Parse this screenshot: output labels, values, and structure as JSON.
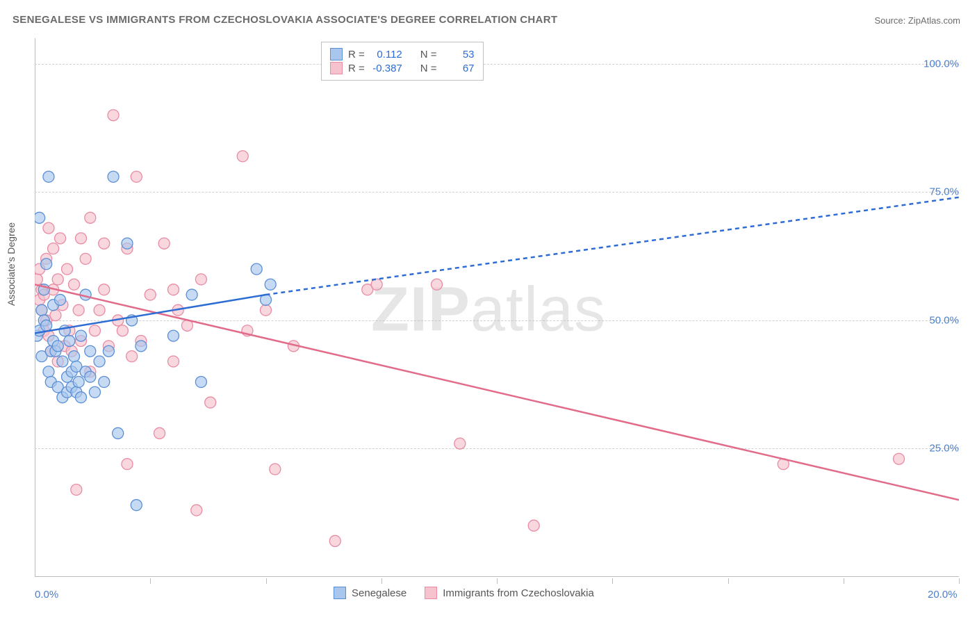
{
  "title": "SENEGALESE VS IMMIGRANTS FROM CZECHOSLOVAKIA ASSOCIATE'S DEGREE CORRELATION CHART",
  "source": "Source: ZipAtlas.com",
  "watermark_bold": "ZIP",
  "watermark_rest": "atlas",
  "ylabel": "Associate's Degree",
  "colors": {
    "blue_fill": "#a9c6ec",
    "blue_stroke": "#5a8fd6",
    "blue_line": "#2d6cd4",
    "pink_fill": "#f5c2ce",
    "pink_stroke": "#e98ba3",
    "pink_line": "#e26b8a",
    "grid": "#d0d0d0",
    "axis": "#bdbdbd",
    "axis_label": "#4a7fc9",
    "text": "#555555",
    "title_color": "#6b6b6b"
  },
  "marker": {
    "radius": 8,
    "opacity": 0.65,
    "stroke_width": 1.3
  },
  "stats": {
    "series1": {
      "r_label": "R =",
      "r_value": "0.112",
      "n_label": "N =",
      "n_value": "53"
    },
    "series2": {
      "r_label": "R =",
      "r_value": "-0.387",
      "n_label": "N =",
      "n_value": "67"
    }
  },
  "legend": {
    "series1": "Senegalese",
    "series2": "Immigrants from Czechoslovakia"
  },
  "axes": {
    "xlim": [
      0,
      20
    ],
    "ylim": [
      0,
      105
    ],
    "yticks": [
      25,
      50,
      75,
      100
    ],
    "ytick_labels": [
      "25.0%",
      "50.0%",
      "75.0%",
      "100.0%"
    ],
    "xticks": [
      0,
      2.5,
      5,
      7.5,
      10,
      12.5,
      15,
      17.5,
      20
    ],
    "xtick_labels_shown": {
      "0": "0.0%",
      "20": "20.0%"
    }
  },
  "trend_lines": {
    "blue": {
      "solid": [
        [
          0,
          47.5
        ],
        [
          5,
          55
        ]
      ],
      "dashed": [
        [
          5,
          55
        ],
        [
          20,
          74
        ]
      ]
    },
    "pink": {
      "solid": [
        [
          0,
          57
        ],
        [
          20,
          15
        ]
      ]
    }
  },
  "series_blue": [
    [
      0.05,
      47
    ],
    [
      0.1,
      70
    ],
    [
      0.1,
      48
    ],
    [
      0.15,
      43
    ],
    [
      0.15,
      52
    ],
    [
      0.2,
      56
    ],
    [
      0.2,
      50
    ],
    [
      0.25,
      49
    ],
    [
      0.25,
      61
    ],
    [
      0.3,
      40
    ],
    [
      0.3,
      78
    ],
    [
      0.35,
      44
    ],
    [
      0.35,
      38
    ],
    [
      0.4,
      46
    ],
    [
      0.4,
      53
    ],
    [
      0.45,
      44
    ],
    [
      0.5,
      37
    ],
    [
      0.5,
      45
    ],
    [
      0.55,
      54
    ],
    [
      0.6,
      42
    ],
    [
      0.6,
      35
    ],
    [
      0.65,
      48
    ],
    [
      0.7,
      36
    ],
    [
      0.7,
      39
    ],
    [
      0.75,
      46
    ],
    [
      0.8,
      40
    ],
    [
      0.8,
      37
    ],
    [
      0.85,
      43
    ],
    [
      0.9,
      41
    ],
    [
      0.9,
      36
    ],
    [
      0.95,
      38
    ],
    [
      1.0,
      35
    ],
    [
      1.0,
      47
    ],
    [
      1.1,
      40
    ],
    [
      1.1,
      55
    ],
    [
      1.2,
      44
    ],
    [
      1.2,
      39
    ],
    [
      1.3,
      36
    ],
    [
      1.4,
      42
    ],
    [
      1.5,
      38
    ],
    [
      1.6,
      44
    ],
    [
      1.7,
      78
    ],
    [
      1.8,
      28
    ],
    [
      2.0,
      65
    ],
    [
      2.1,
      50
    ],
    [
      2.2,
      14
    ],
    [
      2.3,
      45
    ],
    [
      3.0,
      47
    ],
    [
      3.4,
      55
    ],
    [
      3.6,
      38
    ],
    [
      4.8,
      60
    ],
    [
      5.0,
      54
    ],
    [
      5.1,
      57
    ]
  ],
  "series_pink": [
    [
      0.05,
      58
    ],
    [
      0.1,
      54
    ],
    [
      0.1,
      60
    ],
    [
      0.15,
      56
    ],
    [
      0.15,
      52
    ],
    [
      0.2,
      55
    ],
    [
      0.2,
      48
    ],
    [
      0.25,
      62
    ],
    [
      0.25,
      50
    ],
    [
      0.3,
      68
    ],
    [
      0.3,
      47
    ],
    [
      0.35,
      44
    ],
    [
      0.4,
      56
    ],
    [
      0.4,
      64
    ],
    [
      0.45,
      51
    ],
    [
      0.5,
      42
    ],
    [
      0.5,
      58
    ],
    [
      0.55,
      66
    ],
    [
      0.6,
      53
    ],
    [
      0.65,
      45
    ],
    [
      0.7,
      60
    ],
    [
      0.75,
      48
    ],
    [
      0.8,
      44
    ],
    [
      0.85,
      57
    ],
    [
      0.9,
      17
    ],
    [
      0.95,
      52
    ],
    [
      1.0,
      66
    ],
    [
      1.0,
      46
    ],
    [
      1.1,
      62
    ],
    [
      1.2,
      70
    ],
    [
      1.2,
      40
    ],
    [
      1.3,
      48
    ],
    [
      1.4,
      52
    ],
    [
      1.5,
      56
    ],
    [
      1.5,
      65
    ],
    [
      1.6,
      45
    ],
    [
      1.7,
      90
    ],
    [
      1.8,
      50
    ],
    [
      1.9,
      48
    ],
    [
      2.0,
      64
    ],
    [
      2.0,
      22
    ],
    [
      2.1,
      43
    ],
    [
      2.2,
      78
    ],
    [
      2.3,
      46
    ],
    [
      2.5,
      55
    ],
    [
      2.7,
      28
    ],
    [
      2.8,
      65
    ],
    [
      3.0,
      42
    ],
    [
      3.0,
      56
    ],
    [
      3.1,
      52
    ],
    [
      3.3,
      49
    ],
    [
      3.5,
      13
    ],
    [
      3.6,
      58
    ],
    [
      3.8,
      34
    ],
    [
      4.5,
      82
    ],
    [
      4.6,
      48
    ],
    [
      5.0,
      52
    ],
    [
      5.2,
      21
    ],
    [
      5.6,
      45
    ],
    [
      6.5,
      7
    ],
    [
      7.2,
      56
    ],
    [
      7.4,
      57
    ],
    [
      8.7,
      57
    ],
    [
      9.2,
      26
    ],
    [
      10.8,
      10
    ],
    [
      16.2,
      22
    ],
    [
      18.7,
      23
    ]
  ]
}
